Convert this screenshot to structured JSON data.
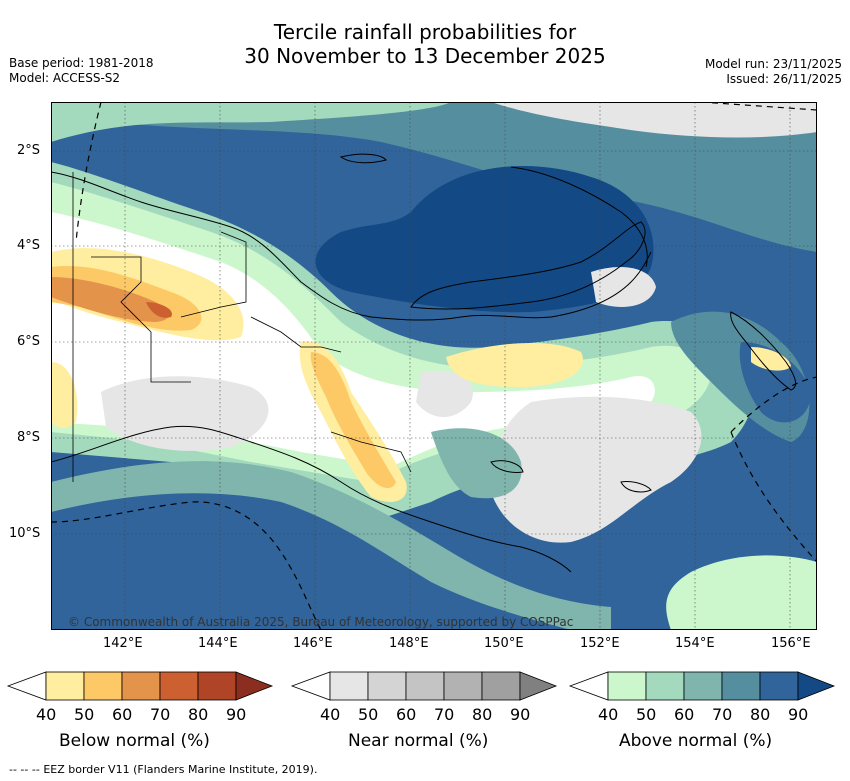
{
  "title_line1": "Tercile rainfall probabilities for",
  "title_line2": "30 November to 13 December 2025",
  "base_period": "Base period: 1981-2018",
  "model": "Model: ACCESS-S2",
  "model_run": "Model run: 23/11/2025",
  "issued": "Issued: 26/11/2025",
  "copyright": "© Commonwealth of Australia 2025, Bureau of Meteorology, supported by COSPPac",
  "lat_ticks": [
    "2°S",
    "4°S",
    "6°S",
    "8°S",
    "10°S"
  ],
  "lon_ticks": [
    "142°E",
    "144°E",
    "146°E",
    "148°E",
    "150°E",
    "152°E",
    "154°E",
    "156°E"
  ],
  "colorbars": [
    {
      "title": "Below normal (%)",
      "ticks": [
        "40",
        "50",
        "60",
        "70",
        "80",
        "90"
      ],
      "colors": [
        "#ffeda0",
        "#fdc966",
        "#e3934a",
        "#cd6030",
        "#b04426",
        "#8b2e1f"
      ]
    },
    {
      "title": "Near normal (%)",
      "ticks": [
        "40",
        "50",
        "60",
        "70",
        "80",
        "90"
      ],
      "colors": [
        "#e6e6e6",
        "#d4d4d4",
        "#c4c4c4",
        "#b2b2b2",
        "#a0a0a0",
        "#808080"
      ]
    },
    {
      "title": "Above normal (%)",
      "ticks": [
        "40",
        "50",
        "60",
        "70",
        "80",
        "90"
      ],
      "colors": [
        "#ccf7cc",
        "#a3d9bd",
        "#7fb5ad",
        "#558f9f",
        "#30649a",
        "#134a85"
      ]
    }
  ],
  "footnote_dash": "--  --  --",
  "footnote": "EEZ border V11 (Flanders Marine Institute, 2019)."
}
